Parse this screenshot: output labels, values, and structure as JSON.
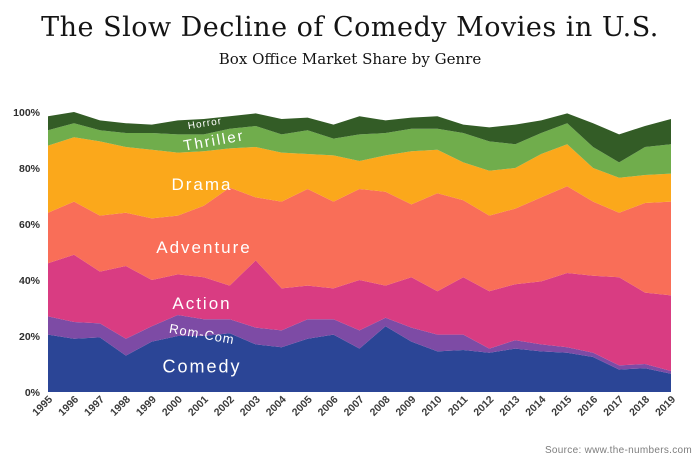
{
  "chart_data": {
    "type": "area",
    "stacked": true,
    "title": "The Slow Decline of Comedy Movies in U.S.",
    "subtitle": "Box Office Market Share by Genre",
    "source": "Source: www.the-numbers.com",
    "x": [
      1995,
      1996,
      1997,
      1998,
      1999,
      2000,
      2001,
      2002,
      2003,
      2004,
      2005,
      2006,
      2007,
      2008,
      2009,
      2010,
      2011,
      2012,
      2013,
      2014,
      2015,
      2016,
      2017,
      2018,
      2019
    ],
    "ylim": [
      0,
      100
    ],
    "yticks": [
      {
        "value": 0,
        "label": "0%"
      },
      {
        "value": 20,
        "label": "20%"
      },
      {
        "value": 40,
        "label": "40%"
      },
      {
        "value": 60,
        "label": "60%"
      },
      {
        "value": 80,
        "label": "80%"
      },
      {
        "value": 100,
        "label": "100%"
      }
    ],
    "grid": false,
    "legend": "labels-on-areas",
    "units": "percent market share",
    "series": [
      {
        "name": "Comedy",
        "color": "#2B4596",
        "values": [
          20.5,
          19,
          19.5,
          13,
          18,
          20,
          20,
          21,
          17,
          16,
          19,
          20.5,
          15.5,
          23.5,
          18,
          14.5,
          15,
          14,
          15.5,
          14.5,
          14,
          12.5,
          8,
          8.5,
          6.5
        ]
      },
      {
        "name": "Rom-Com",
        "color": "#7D4BA5",
        "values": [
          6.5,
          6,
          5,
          6,
          5.5,
          7.5,
          6,
          5,
          6,
          6,
          7,
          5.5,
          6.5,
          3,
          5,
          6,
          5.5,
          1.5,
          3,
          2.5,
          2,
          1.5,
          1.5,
          1.5,
          1
        ]
      },
      {
        "name": "Action",
        "color": "#D93C82",
        "values": [
          19,
          24,
          18.5,
          26,
          16.5,
          14.5,
          15,
          12,
          24,
          15,
          12,
          11,
          18,
          11.5,
          18,
          15.5,
          20.5,
          20.5,
          20,
          22.5,
          26.5,
          27.5,
          31.5,
          25.5,
          27
        ]
      },
      {
        "name": "Adventure",
        "color": "#F96E58",
        "values": [
          18,
          19,
          20,
          19,
          22,
          21,
          25.5,
          35,
          22.5,
          31,
          34.5,
          31,
          32.5,
          33.5,
          26,
          35,
          27.5,
          27,
          27,
          30,
          31,
          26.5,
          23,
          32,
          33.5
        ]
      },
      {
        "name": "Drama",
        "color": "#FBA81B",
        "values": [
          24,
          23,
          26.5,
          23.5,
          24.5,
          22.5,
          19.5,
          14,
          18,
          17.5,
          12.5,
          16.5,
          10,
          13,
          19,
          15.5,
          13.5,
          16,
          14.5,
          15.5,
          15,
          12,
          12.5,
          10,
          10
        ]
      },
      {
        "name": "Thriller",
        "color": "#70AD4C",
        "values": [
          5.5,
          5,
          4,
          5,
          6,
          6.5,
          6,
          7,
          7.5,
          6.5,
          8.5,
          6,
          9.5,
          8,
          8,
          7.5,
          10.5,
          10.5,
          8.5,
          7.5,
          7.5,
          7.5,
          5.5,
          10,
          10.5
        ]
      },
      {
        "name": "Horror",
        "color": "#335C26",
        "values": [
          5,
          4,
          3.5,
          3.5,
          3,
          5,
          5.5,
          4.5,
          4.5,
          5.5,
          4.5,
          5,
          6.5,
          4.5,
          4,
          4.5,
          3,
          5,
          7,
          4.5,
          3.5,
          8.5,
          10,
          7.5,
          9
        ]
      }
    ],
    "area_labels": [
      {
        "text": "Horror",
        "x": 205,
        "y": 124,
        "size": 10,
        "rot": -9
      },
      {
        "text": "Thriller",
        "x": 214,
        "y": 141,
        "size": 15,
        "rot": -10
      },
      {
        "text": "Drama",
        "x": 202,
        "y": 185,
        "size": 17,
        "rot": 0
      },
      {
        "text": "Adventure",
        "x": 204,
        "y": 248,
        "size": 17,
        "rot": 0
      },
      {
        "text": "Action",
        "x": 202,
        "y": 304,
        "size": 17,
        "rot": 0
      },
      {
        "text": "Rom-Com",
        "x": 202,
        "y": 334,
        "size": 13,
        "rot": 10
      },
      {
        "text": "Comedy",
        "x": 202,
        "y": 367,
        "size": 18,
        "rot": 0
      }
    ]
  }
}
